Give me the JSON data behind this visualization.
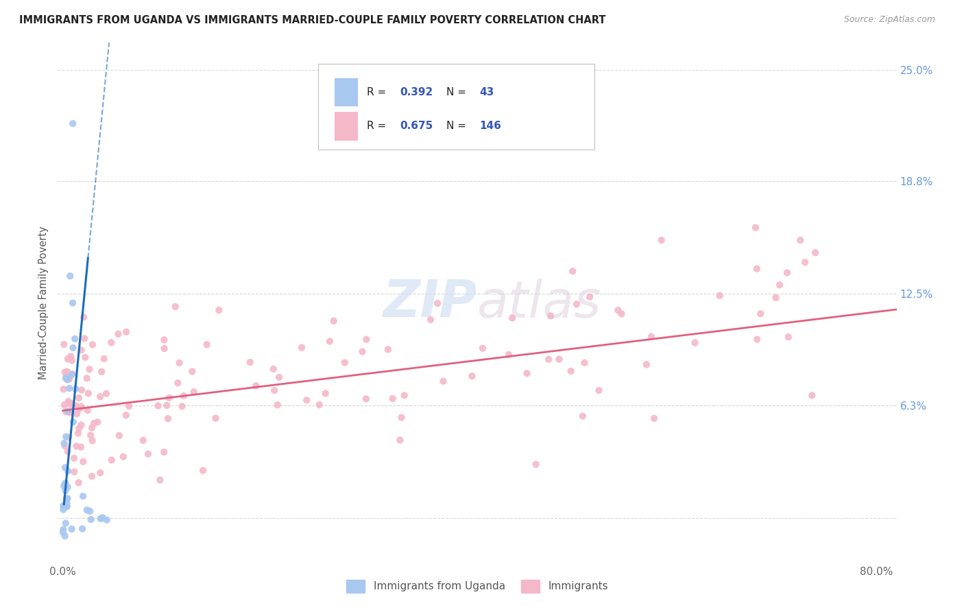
{
  "title": "IMMIGRANTS FROM UGANDA VS IMMIGRANTS MARRIED-COUPLE FAMILY POVERTY CORRELATION CHART",
  "source": "Source: ZipAtlas.com",
  "ylabel": "Married-Couple Family Poverty",
  "series1_color": "#a8c8f0",
  "series2_color": "#f5b8c8",
  "trendline1_color": "#1a6bbf",
  "trendline2_color": "#e06080",
  "R1": "0.392",
  "N1": "43",
  "R2": "0.675",
  "N2": "146",
  "legend_label1": "Immigrants from Uganda",
  "legend_label2": "Immigrants",
  "watermark_zip": "ZIP",
  "watermark_atlas": "atlas",
  "background_color": "#ffffff",
  "grid_color": "#d8d8d8",
  "right_tick_color": "#6699dd",
  "title_color": "#222222",
  "axis_label_color": "#555555",
  "legend_r_color": "#3355bb",
  "legend_n_color": "#3355bb"
}
